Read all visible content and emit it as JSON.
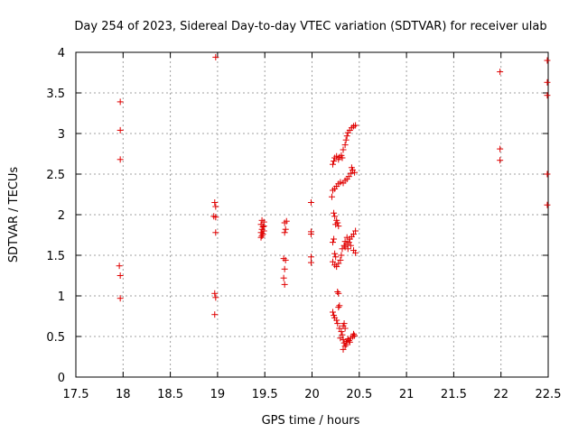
{
  "chart_data": {
    "type": "scatter",
    "title": "Day 254 of 2023, Sidereal Day-to-day VTEC variation (SDTVAR) for receiver ulab",
    "xlabel": "GPS time / hours",
    "ylabel": "SDTVAR / TECUs",
    "xlim": [
      17.5,
      22.5
    ],
    "ylim": [
      0,
      4
    ],
    "grid": true,
    "marker": "+",
    "color": "#e00000",
    "x_ticks": [
      "17.5",
      "18",
      "18.5",
      "19",
      "19.5",
      "20",
      "20.5",
      "21",
      "21.5",
      "22",
      "22.5"
    ],
    "y_ticks": [
      "0",
      "0.5",
      "1",
      "1.5",
      "2",
      "2.5",
      "3",
      "3.5",
      "4"
    ],
    "points": [
      [
        17.97,
        3.39
      ],
      [
        17.97,
        3.04
      ],
      [
        17.97,
        2.68
      ],
      [
        17.96,
        1.37
      ],
      [
        17.97,
        1.25
      ],
      [
        17.97,
        0.97
      ],
      [
        18.98,
        3.94
      ],
      [
        18.97,
        2.15
      ],
      [
        18.98,
        2.1
      ],
      [
        18.96,
        1.98
      ],
      [
        18.98,
        1.97
      ],
      [
        18.98,
        1.78
      ],
      [
        18.97,
        1.03
      ],
      [
        18.98,
        0.98
      ],
      [
        18.97,
        0.77
      ],
      [
        19.47,
        1.93
      ],
      [
        19.49,
        1.91
      ],
      [
        19.46,
        1.88
      ],
      [
        19.48,
        1.85
      ],
      [
        19.47,
        1.82
      ],
      [
        19.49,
        1.8
      ],
      [
        19.46,
        1.78
      ],
      [
        19.48,
        1.76
      ],
      [
        19.47,
        1.74
      ],
      [
        19.46,
        1.72
      ],
      [
        19.49,
        1.86
      ],
      [
        19.73,
        1.92
      ],
      [
        19.71,
        1.9
      ],
      [
        19.72,
        1.82
      ],
      [
        19.71,
        1.78
      ],
      [
        19.7,
        1.46
      ],
      [
        19.72,
        1.44
      ],
      [
        19.71,
        1.33
      ],
      [
        19.7,
        1.22
      ],
      [
        19.71,
        1.14
      ],
      [
        19.99,
        2.15
      ],
      [
        19.99,
        1.79
      ],
      [
        19.99,
        1.76
      ],
      [
        19.99,
        1.48
      ],
      [
        19.99,
        1.41
      ],
      [
        20.21,
        2.22
      ],
      [
        20.22,
        2.3
      ],
      [
        20.24,
        2.32
      ],
      [
        20.26,
        2.35
      ],
      [
        20.28,
        2.38
      ],
      [
        20.3,
        2.4
      ],
      [
        20.33,
        2.39
      ],
      [
        20.35,
        2.42
      ],
      [
        20.37,
        2.44
      ],
      [
        20.39,
        2.47
      ],
      [
        20.41,
        2.51
      ],
      [
        20.43,
        2.55
      ],
      [
        20.45,
        2.52
      ],
      [
        20.42,
        2.58
      ],
      [
        20.22,
        2.62
      ],
      [
        20.23,
        2.66
      ],
      [
        20.24,
        2.7
      ],
      [
        20.26,
        2.72
      ],
      [
        20.28,
        2.68
      ],
      [
        20.29,
        2.71
      ],
      [
        20.31,
        2.73
      ],
      [
        20.32,
        2.7
      ],
      [
        20.33,
        2.8
      ],
      [
        20.35,
        2.86
      ],
      [
        20.36,
        2.92
      ],
      [
        20.37,
        2.97
      ],
      [
        20.38,
        3.01
      ],
      [
        20.4,
        3.04
      ],
      [
        20.42,
        3.07
      ],
      [
        20.44,
        3.09
      ],
      [
        20.46,
        3.1
      ],
      [
        20.23,
        2.02
      ],
      [
        20.24,
        1.98
      ],
      [
        20.26,
        1.93
      ],
      [
        20.27,
        1.9
      ],
      [
        20.25,
        1.88
      ],
      [
        20.28,
        1.86
      ],
      [
        20.22,
        1.66
      ],
      [
        20.23,
        1.7
      ],
      [
        20.24,
        1.52
      ],
      [
        20.25,
        1.48
      ],
      [
        20.22,
        1.42
      ],
      [
        20.24,
        1.38
      ],
      [
        20.26,
        1.36
      ],
      [
        20.28,
        1.4
      ],
      [
        20.3,
        1.44
      ],
      [
        20.31,
        1.5
      ],
      [
        20.32,
        1.58
      ],
      [
        20.34,
        1.62
      ],
      [
        20.35,
        1.6
      ],
      [
        20.37,
        1.64
      ],
      [
        20.39,
        1.66
      ],
      [
        20.4,
        1.7
      ],
      [
        20.42,
        1.73
      ],
      [
        20.44,
        1.76
      ],
      [
        20.46,
        1.8
      ],
      [
        20.38,
        1.58
      ],
      [
        20.41,
        1.62
      ],
      [
        20.44,
        1.56
      ],
      [
        20.46,
        1.53
      ],
      [
        20.35,
        1.67
      ],
      [
        20.37,
        1.72
      ],
      [
        20.27,
        1.05
      ],
      [
        20.28,
        1.03
      ],
      [
        20.29,
        0.88
      ],
      [
        20.28,
        0.86
      ],
      [
        20.22,
        0.8
      ],
      [
        20.23,
        0.76
      ],
      [
        20.24,
        0.73
      ],
      [
        20.26,
        0.7
      ],
      [
        20.27,
        0.66
      ],
      [
        20.29,
        0.6
      ],
      [
        20.31,
        0.56
      ],
      [
        20.32,
        0.52
      ],
      [
        20.3,
        0.48
      ],
      [
        20.33,
        0.46
      ],
      [
        20.34,
        0.42
      ],
      [
        20.35,
        0.38
      ],
      [
        20.33,
        0.34
      ],
      [
        20.36,
        0.4
      ],
      [
        20.37,
        0.44
      ],
      [
        20.38,
        0.47
      ],
      [
        20.39,
        0.45
      ],
      [
        20.4,
        0.43
      ],
      [
        20.41,
        0.48
      ],
      [
        20.43,
        0.5
      ],
      [
        20.44,
        0.53
      ],
      [
        20.45,
        0.51
      ],
      [
        20.33,
        0.63
      ],
      [
        20.34,
        0.66
      ],
      [
        20.35,
        0.6
      ],
      [
        21.99,
        3.76
      ],
      [
        21.99,
        2.81
      ],
      [
        21.99,
        2.67
      ],
      [
        22.49,
        3.9
      ],
      [
        22.49,
        3.63
      ],
      [
        22.49,
        3.47
      ],
      [
        22.49,
        2.5
      ],
      [
        22.49,
        2.12
      ]
    ]
  }
}
